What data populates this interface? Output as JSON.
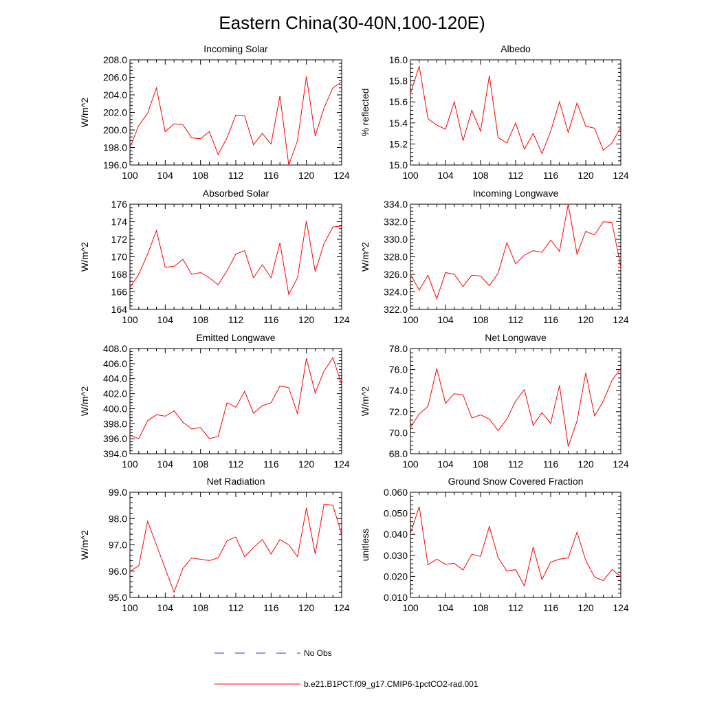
{
  "title": "Eastern China(30-40N,100-120E)",
  "colors": {
    "model_line": "#ff0000",
    "obs_line": "#3333cc",
    "axis": "#000000"
  },
  "legend": [
    {
      "label": "No Obs",
      "style": "dashed",
      "color": "#3333cc"
    },
    {
      "label": "b.e21.B1PCT.f09_g17.CMIP6-1pctCO2-rad.001",
      "style": "solid",
      "color": "#ff0000"
    }
  ],
  "chart_data": [
    {
      "type": "line",
      "title": "Incoming Solar",
      "ylabel": "W/m^2",
      "xlim": [
        100,
        124
      ],
      "ylim": [
        196,
        208
      ],
      "xticks": [
        "100",
        "104",
        "108",
        "112",
        "116",
        "120",
        "124"
      ],
      "yticks": [
        "196.0",
        "198.0",
        "200.0",
        "202.0",
        "204.0",
        "206.0",
        "208.0"
      ],
      "x": [
        100,
        101,
        102,
        103,
        104,
        105,
        106,
        107,
        108,
        109,
        110,
        111,
        112,
        113,
        114,
        115,
        116,
        117,
        118,
        119,
        120,
        121,
        122,
        123,
        124
      ],
      "series": [
        {
          "name": "b.e21.B1PCT.f09_g17.CMIP6-1pctCO2-rad.001",
          "values": [
            198.0,
            200.5,
            201.9,
            204.8,
            199.8,
            200.7,
            200.6,
            199.1,
            199.0,
            199.8,
            197.2,
            199.1,
            201.7,
            201.6,
            198.3,
            199.6,
            198.4,
            203.9,
            196.0,
            198.8,
            206.1,
            199.3,
            202.5,
            204.8,
            205.5
          ]
        }
      ]
    },
    {
      "type": "line",
      "title": "Albedo",
      "ylabel": "% reflected",
      "xlim": [
        100,
        124
      ],
      "ylim": [
        15.0,
        16.0
      ],
      "xticks": [
        "100",
        "104",
        "108",
        "112",
        "116",
        "120",
        "124"
      ],
      "yticks": [
        "15.0",
        "15.2",
        "15.4",
        "15.6",
        "15.8",
        "16.0"
      ],
      "x": [
        100,
        101,
        102,
        103,
        104,
        105,
        106,
        107,
        108,
        109,
        110,
        111,
        112,
        113,
        114,
        115,
        116,
        117,
        118,
        119,
        120,
        121,
        122,
        123,
        124
      ],
      "series": [
        {
          "name": "b.e21.B1PCT.f09_g17.CMIP6-1pctCO2-rad.001",
          "values": [
            15.68,
            15.94,
            15.44,
            15.38,
            15.34,
            15.6,
            15.23,
            15.52,
            15.32,
            15.85,
            15.26,
            15.21,
            15.4,
            15.15,
            15.3,
            15.11,
            15.32,
            15.6,
            15.31,
            15.59,
            15.37,
            15.35,
            15.14,
            15.21,
            15.36
          ]
        }
      ]
    },
    {
      "type": "line",
      "title": "Absorbed Solar",
      "ylabel": "W/m^2",
      "xlim": [
        100,
        124
      ],
      "ylim": [
        164,
        176
      ],
      "xticks": [
        "100",
        "104",
        "108",
        "112",
        "116",
        "120",
        "124"
      ],
      "yticks": [
        "164",
        "166",
        "168",
        "170",
        "172",
        "174",
        "176"
      ],
      "x": [
        100,
        101,
        102,
        103,
        104,
        105,
        106,
        107,
        108,
        109,
        110,
        111,
        112,
        113,
        114,
        115,
        116,
        117,
        118,
        119,
        120,
        121,
        122,
        123,
        124
      ],
      "series": [
        {
          "name": "b.e21.B1PCT.f09_g17.CMIP6-1pctCO2-rad.001",
          "values": [
            166.5,
            168.0,
            170.3,
            173.0,
            168.8,
            168.9,
            169.7,
            168.0,
            168.2,
            167.6,
            166.8,
            168.4,
            170.3,
            170.7,
            167.6,
            169.1,
            167.6,
            171.6,
            165.7,
            167.6,
            174.1,
            168.3,
            171.5,
            173.4,
            173.5
          ]
        }
      ]
    },
    {
      "type": "line",
      "title": "Incoming Longwave",
      "ylabel": "W/m^2",
      "xlim": [
        100,
        124
      ],
      "ylim": [
        322,
        334
      ],
      "xticks": [
        "100",
        "104",
        "108",
        "112",
        "116",
        "120",
        "124"
      ],
      "yticks": [
        "322.0",
        "324.0",
        "326.0",
        "328.0",
        "330.0",
        "332.0",
        "334.0"
      ],
      "x": [
        100,
        101,
        102,
        103,
        104,
        105,
        106,
        107,
        108,
        109,
        110,
        111,
        112,
        113,
        114,
        115,
        116,
        117,
        118,
        119,
        120,
        121,
        122,
        123,
        124
      ],
      "series": [
        {
          "name": "b.e21.B1PCT.f09_g17.CMIP6-1pctCO2-rad.001",
          "values": [
            326.0,
            324.2,
            325.9,
            323.2,
            326.2,
            326.0,
            324.6,
            325.9,
            325.8,
            324.7,
            326.1,
            329.6,
            327.2,
            328.2,
            328.7,
            328.5,
            329.9,
            328.6,
            334.0,
            328.3,
            330.9,
            330.5,
            332.0,
            331.9,
            326.8
          ]
        }
      ]
    },
    {
      "type": "line",
      "title": "Emitted Longwave",
      "ylabel": "W/m^2",
      "xlim": [
        100,
        124
      ],
      "ylim": [
        394,
        408
      ],
      "xticks": [
        "100",
        "104",
        "108",
        "112",
        "116",
        "120",
        "124"
      ],
      "yticks": [
        "394.0",
        "396.0",
        "398.0",
        "400.0",
        "402.0",
        "404.0",
        "406.0",
        "408.0"
      ],
      "x": [
        100,
        101,
        102,
        103,
        104,
        105,
        106,
        107,
        108,
        109,
        110,
        111,
        112,
        113,
        114,
        115,
        116,
        117,
        118,
        119,
        120,
        121,
        122,
        123,
        124
      ],
      "series": [
        {
          "name": "b.e21.B1PCT.f09_g17.CMIP6-1pctCO2-rad.001",
          "values": [
            396.5,
            396.0,
            398.4,
            399.2,
            399.0,
            399.7,
            398.2,
            397.3,
            397.5,
            396.0,
            396.3,
            400.8,
            400.2,
            402.3,
            399.4,
            400.4,
            400.8,
            403.0,
            402.8,
            399.3,
            406.7,
            402.1,
            405.0,
            406.8,
            403.2
          ]
        }
      ]
    },
    {
      "type": "line",
      "title": "Net Longwave",
      "ylabel": "W/m^2",
      "xlim": [
        100,
        124
      ],
      "ylim": [
        68,
        78
      ],
      "xticks": [
        "100",
        "104",
        "108",
        "112",
        "116",
        "120",
        "124"
      ],
      "yticks": [
        "68.0",
        "70.0",
        "72.0",
        "74.0",
        "76.0",
        "78.0"
      ],
      "x": [
        100,
        101,
        102,
        103,
        104,
        105,
        106,
        107,
        108,
        109,
        110,
        111,
        112,
        113,
        114,
        115,
        116,
        117,
        118,
        119,
        120,
        121,
        122,
        123,
        124
      ],
      "series": [
        {
          "name": "b.e21.B1PCT.f09_g17.CMIP6-1pctCO2-rad.001",
          "values": [
            70.5,
            71.8,
            72.5,
            76.1,
            72.8,
            73.7,
            73.6,
            71.4,
            71.7,
            71.3,
            70.2,
            71.3,
            73.0,
            74.1,
            70.7,
            71.9,
            70.9,
            74.5,
            68.7,
            71.1,
            75.7,
            71.6,
            73.0,
            75.0,
            76.1
          ]
        }
      ]
    },
    {
      "type": "line",
      "title": "Net Radiation",
      "ylabel": "W/m^2",
      "xlim": [
        100,
        124
      ],
      "ylim": [
        95,
        99
      ],
      "xticks": [
        "100",
        "104",
        "108",
        "112",
        "116",
        "120",
        "124"
      ],
      "yticks": [
        "95.0",
        "96.0",
        "97.0",
        "98.0",
        "99.0"
      ],
      "x": [
        100,
        101,
        102,
        103,
        104,
        105,
        106,
        107,
        108,
        109,
        110,
        111,
        112,
        113,
        114,
        115,
        116,
        117,
        118,
        119,
        120,
        121,
        122,
        123,
        124
      ],
      "series": [
        {
          "name": "b.e21.B1PCT.f09_g17.CMIP6-1pctCO2-rad.001",
          "values": [
            96.0,
            96.2,
            97.9,
            97.0,
            96.1,
            95.2,
            96.1,
            96.5,
            96.45,
            96.4,
            96.5,
            97.15,
            97.3,
            96.55,
            96.9,
            97.2,
            96.65,
            97.2,
            97.0,
            96.55,
            98.4,
            96.65,
            98.55,
            98.5,
            97.4
          ]
        }
      ]
    },
    {
      "type": "line",
      "title": "Ground Snow Covered Fraction",
      "ylabel": "unitless",
      "xlim": [
        100,
        124
      ],
      "ylim": [
        0.01,
        0.06
      ],
      "xticks": [
        "100",
        "104",
        "108",
        "112",
        "116",
        "120",
        "124"
      ],
      "yticks": [
        "0.010",
        "0.020",
        "0.030",
        "0.040",
        "0.050",
        "0.060"
      ],
      "x": [
        100,
        101,
        102,
        103,
        104,
        105,
        106,
        107,
        108,
        109,
        110,
        111,
        112,
        113,
        114,
        115,
        116,
        117,
        118,
        119,
        120,
        121,
        122,
        123,
        124
      ],
      "series": [
        {
          "name": "b.e21.B1PCT.f09_g17.CMIP6-1pctCO2-rad.001",
          "values": [
            0.0405,
            0.0532,
            0.0255,
            0.0282,
            0.0258,
            0.0262,
            0.023,
            0.0305,
            0.0295,
            0.0438,
            0.029,
            0.0225,
            0.0232,
            0.0155,
            0.034,
            0.0185,
            0.0268,
            0.0282,
            0.0288,
            0.041,
            0.0276,
            0.0197,
            0.018,
            0.0233,
            0.02
          ]
        }
      ]
    }
  ]
}
